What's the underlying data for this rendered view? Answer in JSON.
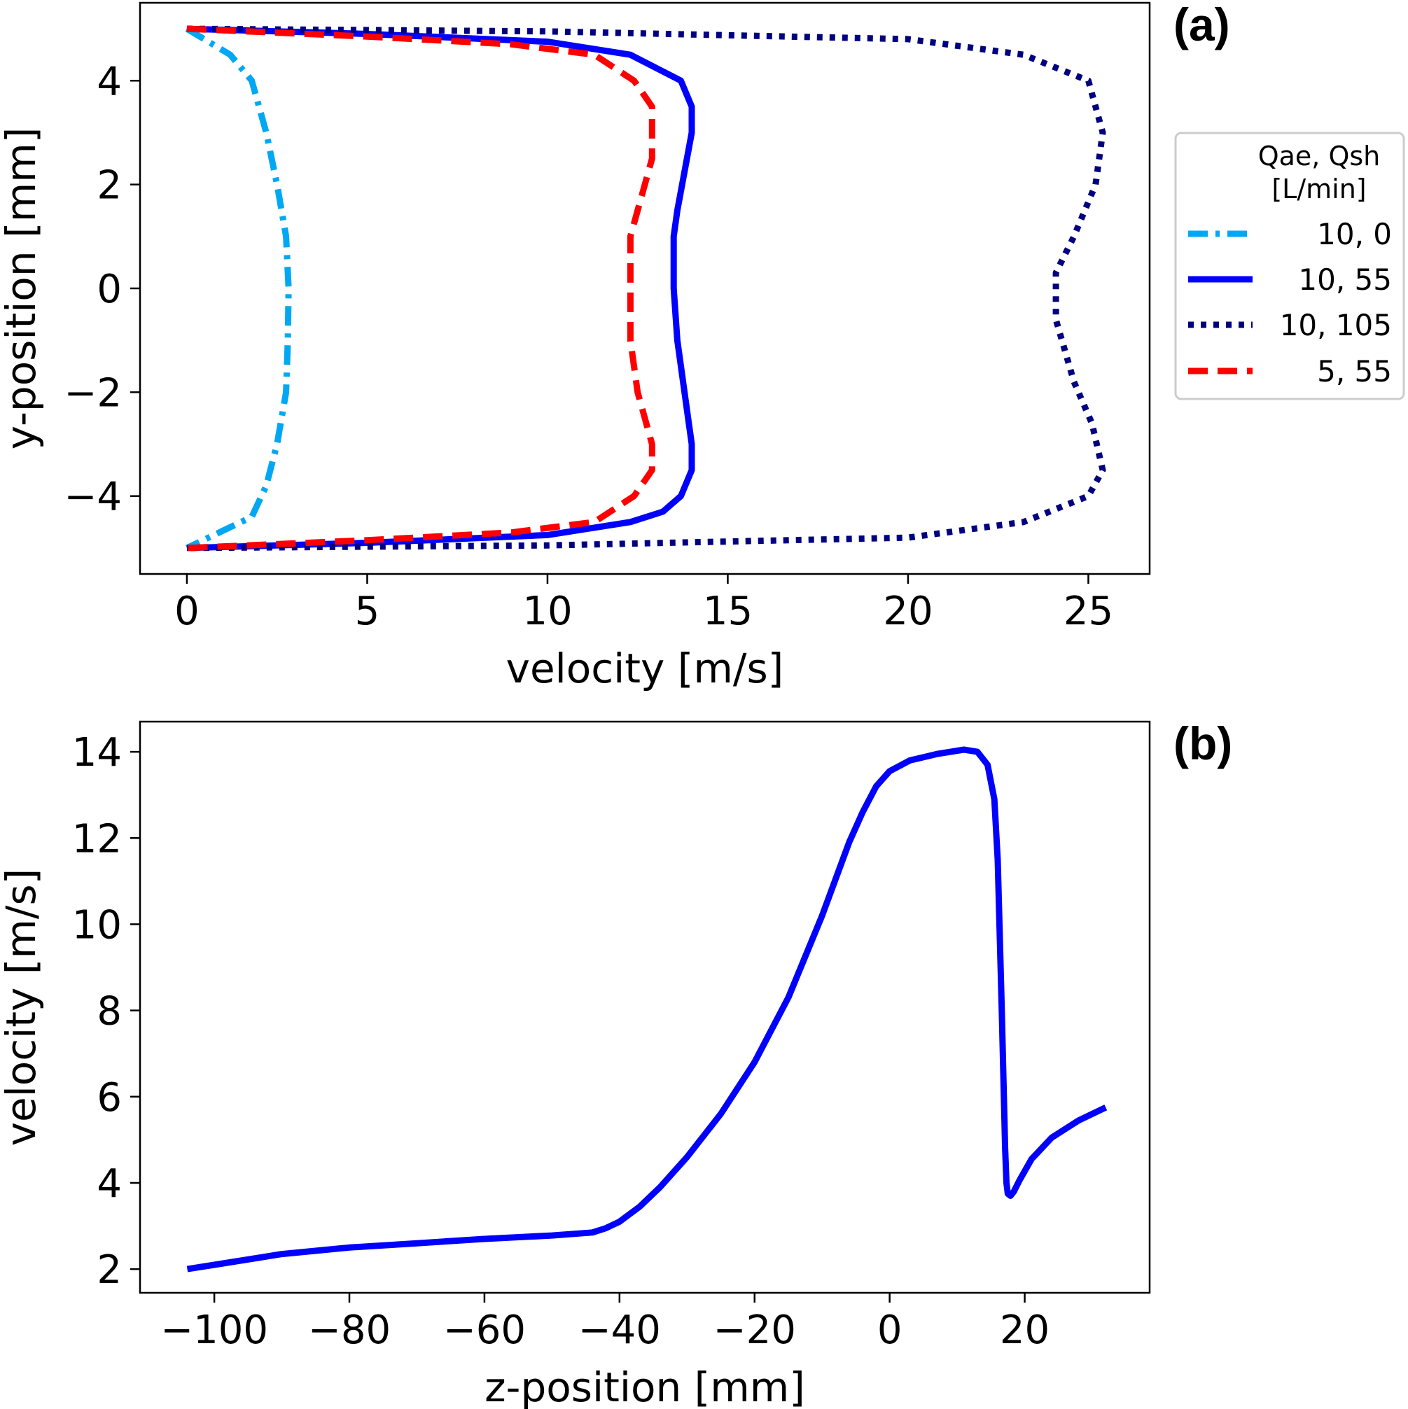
{
  "chart_data": [
    {
      "type": "line",
      "panel_label": "(a)",
      "xlabel": "velocity [m/s]",
      "ylabel": "y-position [mm]",
      "xlim": [
        -1.3,
        26.7
      ],
      "ylim": [
        -5.5,
        5.5
      ],
      "xticks": [
        0,
        5,
        10,
        15,
        20,
        25
      ],
      "yticks": [
        -4,
        -2,
        0,
        2,
        4
      ],
      "legend": {
        "position": "outside-right",
        "title_line1": "Qae, Qsh",
        "title_line2": "[L/min]"
      },
      "series": [
        {
          "name": "10, 0",
          "color": "#00a8f3",
          "dash": "dashdot",
          "x": [
            0,
            1.2,
            1.8,
            2.2,
            2.5,
            2.75,
            2.82,
            2.8,
            2.75,
            2.5,
            2.2,
            1.8,
            1.2,
            0
          ],
          "y": [
            5,
            4.5,
            4,
            3,
            2,
            1,
            0,
            -1,
            -2,
            -3,
            -3.8,
            -4.4,
            -4.6,
            -5
          ]
        },
        {
          "name": "10, 55",
          "color": "#0000ff",
          "dash": "solid",
          "x": [
            0,
            5,
            10,
            12.3,
            13.7,
            14.0,
            14.0,
            13.6,
            13.5,
            13.5,
            13.6,
            13.9,
            14.0,
            14.0,
            13.7,
            13.2,
            12.3,
            10,
            5,
            0
          ],
          "y": [
            5,
            4.9,
            4.75,
            4.5,
            4.0,
            3.5,
            3.0,
            1.5,
            1.0,
            0,
            -1.0,
            -2.5,
            -3.0,
            -3.5,
            -4.0,
            -4.3,
            -4.5,
            -4.75,
            -4.9,
            -5
          ]
        },
        {
          "name": "10, 105",
          "color": "#000080",
          "dash": "dotted",
          "x": [
            0,
            10,
            20,
            23.2,
            25.0,
            25.4,
            25.2,
            24.6,
            24.1,
            24.1,
            24.6,
            25.1,
            25.4,
            25.0,
            23.2,
            20,
            10,
            0
          ],
          "y": [
            5,
            4.95,
            4.8,
            4.5,
            4.0,
            3.0,
            2.0,
            1.0,
            0.3,
            -0.6,
            -1.8,
            -2.6,
            -3.5,
            -4.0,
            -4.5,
            -4.8,
            -4.95,
            -5
          ]
        },
        {
          "name": "5, 55",
          "color": "#ff0000",
          "dash": "dashed",
          "x": [
            0,
            5,
            9,
            11.3,
            12.4,
            12.9,
            12.9,
            12.3,
            12.3,
            12.5,
            12.9,
            12.9,
            12.4,
            11.3,
            9,
            5,
            0
          ],
          "y": [
            5,
            4.85,
            4.7,
            4.5,
            4.0,
            3.5,
            2.5,
            1.0,
            -1.0,
            -2.0,
            -3.0,
            -3.5,
            -4.0,
            -4.5,
            -4.7,
            -4.85,
            -5
          ]
        }
      ]
    },
    {
      "type": "line",
      "panel_label": "(b)",
      "xlabel": "z-position [mm]",
      "ylabel": "velocity [m/s]",
      "xlim": [
        -111,
        38.5
      ],
      "ylim": [
        1.45,
        14.7
      ],
      "xticks": [
        -100,
        -80,
        -60,
        -40,
        -20,
        0,
        20
      ],
      "yticks": [
        2,
        4,
        6,
        8,
        10,
        12,
        14
      ],
      "series": [
        {
          "color": "#0000ff",
          "dash": "solid",
          "x": [
            -104,
            -100,
            -90,
            -80,
            -70,
            -60,
            -50,
            -44,
            -42,
            -40,
            -37,
            -34,
            -30,
            -25,
            -20,
            -15,
            -10,
            -6,
            -4,
            -2,
            0,
            3,
            7,
            11,
            13,
            14.5,
            15.5,
            16,
            16.6,
            17.1,
            17.3,
            17.5,
            17.9,
            18.4,
            19.2,
            21,
            24,
            28,
            32
          ],
          "y": [
            2.0,
            2.1,
            2.35,
            2.5,
            2.6,
            2.7,
            2.78,
            2.85,
            2.95,
            3.1,
            3.45,
            3.9,
            4.6,
            5.6,
            6.8,
            8.3,
            10.2,
            11.9,
            12.6,
            13.2,
            13.55,
            13.8,
            13.95,
            14.05,
            14.0,
            13.7,
            12.9,
            11.5,
            8.0,
            4.8,
            4.0,
            3.75,
            3.7,
            3.8,
            4.05,
            4.55,
            5.05,
            5.45,
            5.75
          ]
        }
      ]
    }
  ]
}
